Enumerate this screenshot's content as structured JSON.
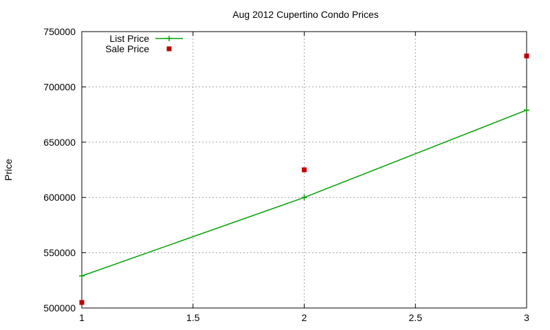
{
  "chart_data": {
    "type": "line",
    "title": "Aug 2012 Cupertino Condo Prices",
    "xlabel": "",
    "ylabel": "Price",
    "xlim": [
      1,
      3
    ],
    "ylim": [
      500000,
      750000
    ],
    "x_ticks": [
      1,
      1.5,
      2,
      2.5,
      3
    ],
    "x_tick_labels": [
      "1",
      "1.5",
      "2",
      "2.5",
      "3"
    ],
    "y_ticks": [
      500000,
      550000,
      600000,
      650000,
      700000,
      750000
    ],
    "y_tick_labels": [
      "500000",
      "550000",
      "600000",
      "650000",
      "700000",
      "750000"
    ],
    "grid": true,
    "legend_position": "top-left",
    "series": [
      {
        "name": "List Price",
        "style": "linespoints",
        "color": "#00a000",
        "marker": "plus",
        "x": [
          1,
          2,
          3
        ],
        "values": [
          529000,
          600000,
          679000
        ]
      },
      {
        "name": "Sale Price",
        "style": "points",
        "color": "#c00000",
        "marker": "square",
        "x": [
          1,
          2,
          3
        ],
        "values": [
          505000,
          625000,
          728000
        ]
      }
    ]
  }
}
